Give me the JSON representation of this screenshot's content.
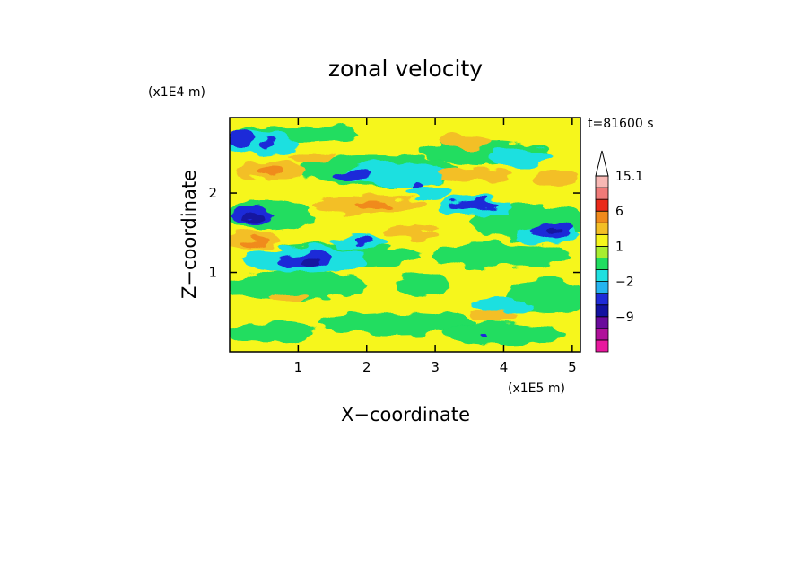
{
  "chart_data": {
    "type": "heatmap",
    "title": "zonal velocity",
    "subtitle": "t=81600 s",
    "xlabel": "X−coordinate",
    "ylabel": "Z−coordinate",
    "x_unit": "(x1E5 m)",
    "y_unit": "(x1E4 m)",
    "xlim": [
      0,
      5.12
    ],
    "ylim": [
      0,
      2.95
    ],
    "x_ticks": [
      {
        "value": 1,
        "label": "1"
      },
      {
        "value": 2,
        "label": "2"
      },
      {
        "value": 3,
        "label": "3"
      },
      {
        "value": 4,
        "label": "4"
      },
      {
        "value": 5,
        "label": "5"
      }
    ],
    "y_ticks": [
      {
        "value": 1,
        "label": "1"
      },
      {
        "value": 2,
        "label": "2"
      }
    ],
    "colorbar": {
      "levels": [
        -15,
        -12,
        -9,
        -6,
        -3,
        -2,
        -1,
        0,
        1,
        2,
        3,
        6,
        9,
        12,
        15.1
      ],
      "colors": [
        "#e8189e",
        "#b0109a",
        "#6a0a9c",
        "#1212a0",
        "#1f2bd8",
        "#25b4f0",
        "#1fe0e0",
        "#20dd60",
        "#a8ee30",
        "#f6f61c",
        "#f3bf26",
        "#f08a1c",
        "#ea2a1a",
        "#f07a78",
        "#f8b8b4"
      ],
      "labels": [
        {
          "value": 15.1,
          "label": "15.1"
        },
        {
          "value": 6,
          "label": "6"
        },
        {
          "value": 1,
          "label": "1"
        },
        {
          "value": -2,
          "label": "−2"
        },
        {
          "value": -9,
          "label": "−9"
        }
      ]
    }
  }
}
